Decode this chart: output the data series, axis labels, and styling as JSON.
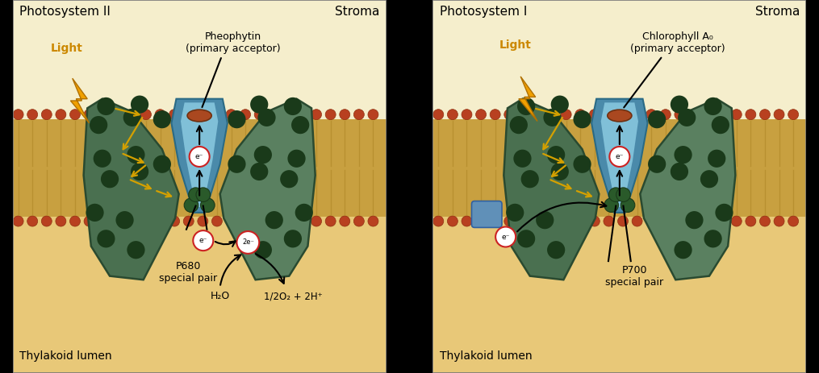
{
  "stroma_color": "#f5eecc",
  "lumen_color": "#e8c878",
  "mem_fill_color": "#c8a040",
  "mem_sphere_color": "#b84020",
  "mem_sphere_edge": "#903010",
  "protein_dark_color": "#4a7050",
  "protein_mid_color": "#5a8060",
  "protein_light_color": "#6a9070",
  "center_blue_dark": "#4a8aaa",
  "center_blue_mid": "#5aaac8",
  "center_blue_light": "#80c0d8",
  "dot_dark": "#1a3a1a",
  "dot_mid": "#2a5a2a",
  "arrow_orange": "#d4a000",
  "e_border": "#cc2222",
  "acceptor_color": "#aa4820",
  "black_sep": "#000000",
  "fig_width": 10.15,
  "fig_height": 4.63,
  "left_title": "Photosystem II",
  "right_title": "Photosystem I",
  "stroma_label": "Stroma",
  "lumen_label": "Thylakoid lumen",
  "left_acceptor_label": "Pheophytin\n(primary acceptor)",
  "right_acceptor_label": "Chlorophyll A₀\n(primary acceptor)",
  "left_special_pair": "P680\nspecial pair",
  "right_special_pair": "P700\nspecial pair",
  "light_label": "Light",
  "water_label": "H₂O",
  "oxygen_label": "1/2O₂ + 2H⁺",
  "two_e_label": "2e⁻"
}
